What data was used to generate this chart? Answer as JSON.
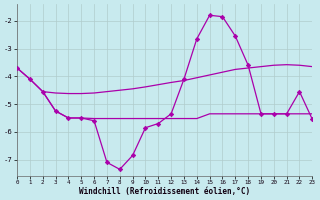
{
  "background_color": "#c8eaee",
  "grid_color": "#b0cccc",
  "line_color": "#aa00aa",
  "xlabel": "Windchill (Refroidissement éolien,°C)",
  "ylim": [
    -7.6,
    -1.4
  ],
  "xlim": [
    0,
    23
  ],
  "yticks": [
    -7,
    -6,
    -5,
    -4,
    -3,
    -2
  ],
  "xticks": [
    0,
    1,
    2,
    3,
    4,
    5,
    6,
    7,
    8,
    9,
    10,
    11,
    12,
    13,
    14,
    15,
    16,
    17,
    18,
    19,
    20,
    21,
    22,
    23
  ],
  "line1_x": [
    0,
    1,
    2,
    3,
    4,
    5,
    6,
    7,
    8,
    9,
    10,
    11,
    12,
    13,
    14,
    15,
    16,
    17,
    18,
    19,
    20,
    21,
    22,
    23
  ],
  "line1_y": [
    -3.7,
    -4.1,
    -4.55,
    -4.6,
    -4.62,
    -4.62,
    -4.6,
    -4.55,
    -4.5,
    -4.45,
    -4.38,
    -4.3,
    -4.22,
    -4.15,
    -4.05,
    -3.95,
    -3.85,
    -3.75,
    -3.7,
    -3.65,
    -3.6,
    -3.58,
    -3.6,
    -3.65
  ],
  "line2_x": [
    2,
    3,
    4,
    5,
    6,
    7,
    8,
    9,
    10,
    11,
    12,
    13,
    14,
    15,
    16,
    17,
    18,
    19,
    20,
    21,
    22,
    23
  ],
  "line2_y": [
    -4.55,
    -5.25,
    -5.5,
    -5.5,
    -5.52,
    -5.52,
    -5.52,
    -5.52,
    -5.52,
    -5.52,
    -5.52,
    -5.52,
    -5.52,
    -5.35,
    -5.35,
    -5.35,
    -5.35,
    -5.35,
    -5.35,
    -5.35,
    -5.35,
    -5.35
  ],
  "line3_x": [
    0,
    1,
    2,
    3,
    4,
    5,
    6,
    7,
    8,
    9,
    10,
    11,
    12,
    13,
    14,
    15,
    16,
    17,
    18,
    19,
    20,
    21,
    22,
    23
  ],
  "line3_y": [
    -3.7,
    -4.1,
    -4.55,
    -5.25,
    -5.5,
    -5.5,
    -5.6,
    -7.1,
    -7.35,
    -6.85,
    -5.85,
    -5.7,
    -5.35,
    -4.1,
    -2.65,
    -1.8,
    -1.85,
    -2.55,
    -3.6,
    -5.35,
    -5.35,
    -5.35,
    -4.55,
    -5.55
  ]
}
